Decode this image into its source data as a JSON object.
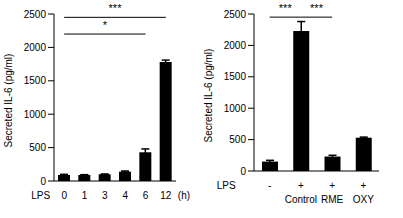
{
  "chart_data": [
    {
      "type": "bar",
      "y_label": "Secreted IL-6 (pg/ml)",
      "x_label": "(h)",
      "row_label": "LPS",
      "categories": [
        "0",
        "1",
        "3",
        "4",
        "6",
        "12"
      ],
      "values": [
        90,
        90,
        100,
        140,
        430,
        1780
      ],
      "errors": [
        10,
        5,
        5,
        10,
        50,
        30
      ],
      "color": "#000000",
      "ylim": [
        0,
        2500
      ],
      "yticks": [
        0,
        500,
        1000,
        1500,
        2000,
        2500
      ],
      "annotations": [
        {
          "text": "*",
          "from": 0,
          "to": 4,
          "y": 2200
        },
        {
          "text": "***",
          "from": 0,
          "to": 5,
          "y": 2450
        }
      ]
    },
    {
      "type": "bar",
      "y_label": "Secreted IL-6 (pg/ml)",
      "row_label": "LPS",
      "categories": [
        "-",
        "+",
        "+",
        "+"
      ],
      "groups": [
        null,
        "Control",
        "RME",
        "OXY"
      ],
      "values": [
        150,
        2230,
        230,
        530
      ],
      "errors": [
        20,
        150,
        20,
        10
      ],
      "color": "#000000",
      "ylim": [
        0,
        2500
      ],
      "yticks": [
        0,
        500,
        1000,
        1500,
        2000,
        2500
      ],
      "annotations": [
        {
          "text": "***",
          "from": 0,
          "to": 1,
          "y": 2450
        },
        {
          "text": "***",
          "from": 1,
          "to": 2,
          "y": 2450
        }
      ]
    }
  ]
}
